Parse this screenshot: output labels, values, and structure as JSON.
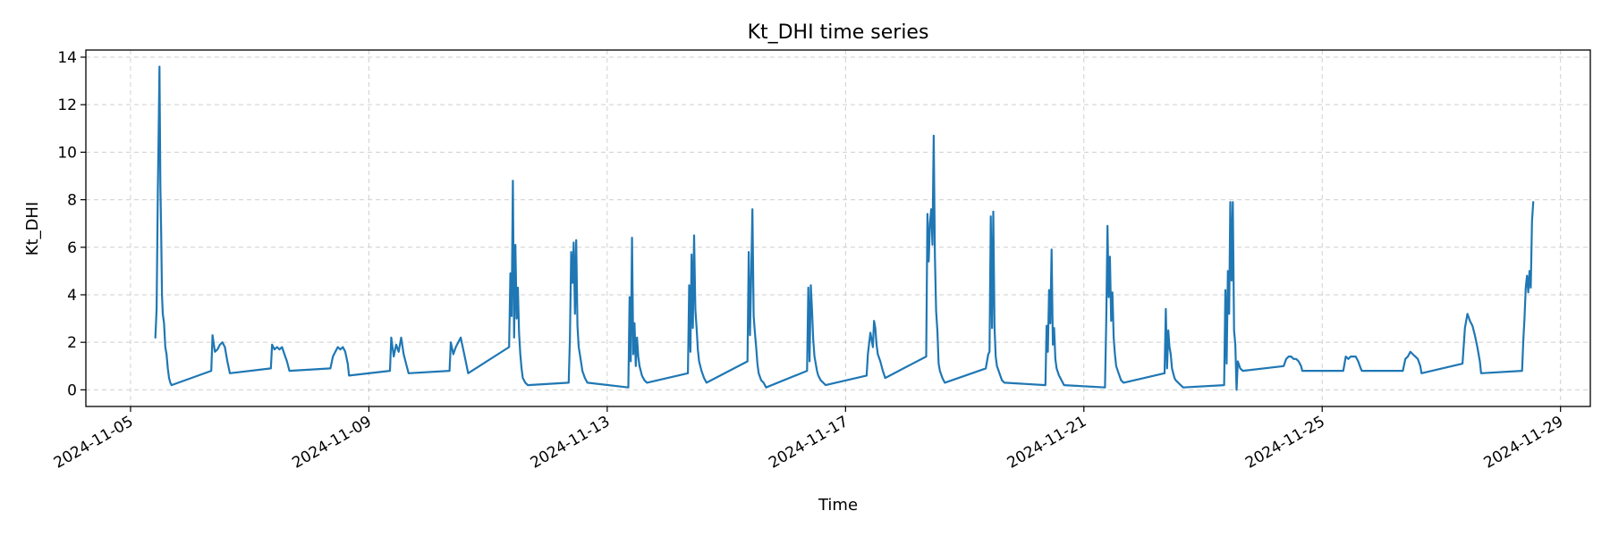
{
  "chart_data": {
    "type": "line",
    "title": "Kt_DHI time series",
    "xlabel": "Time",
    "ylabel": "Kt_DHI",
    "xlim": [
      "2024-11-04T06:00",
      "2024-11-29T12:00"
    ],
    "ylim": [
      -0.7,
      14.3
    ],
    "x_ticks": [
      "2024-11-05",
      "2024-11-09",
      "2024-11-13",
      "2024-11-17",
      "2024-11-21",
      "2024-11-25",
      "2024-11-29"
    ],
    "y_ticks": [
      0,
      2,
      4,
      6,
      8,
      10,
      12,
      14
    ],
    "grid": true,
    "color": "#1f77b4",
    "series": [
      {
        "x": [
          "2024-11-05T10:00",
          "2024-11-05T10:30",
          "2024-11-05T11:00",
          "2024-11-05T11:20",
          "2024-11-05T11:40",
          "2024-11-05T12:00",
          "2024-11-05T12:20",
          "2024-11-05T12:40",
          "2024-11-05T13:00",
          "2024-11-05T13:30",
          "2024-11-05T14:00",
          "2024-11-05T14:30",
          "2024-11-05T15:00",
          "2024-11-05T15:30",
          "2024-11-05T16:00",
          "2024-11-05T16:30",
          "2024-11-06T08:30",
          "2024-11-06T09:00",
          "2024-11-06T10:00",
          "2024-11-06T11:00",
          "2024-11-06T12:00",
          "2024-11-06T13:00",
          "2024-11-06T14:00",
          "2024-11-06T15:00",
          "2024-11-06T16:00",
          "2024-11-07T08:30",
          "2024-11-07T09:00",
          "2024-11-07T10:00",
          "2024-11-07T11:00",
          "2024-11-07T12:00",
          "2024-11-07T13:00",
          "2024-11-07T14:00",
          "2024-11-07T15:00",
          "2024-11-07T16:00",
          "2024-11-08T08:30",
          "2024-11-08T09:30",
          "2024-11-08T10:30",
          "2024-11-08T11:30",
          "2024-11-08T12:30",
          "2024-11-08T13:30",
          "2024-11-08T14:30",
          "2024-11-08T15:30",
          "2024-11-08T16:00",
          "2024-11-09T08:30",
          "2024-11-09T09:00",
          "2024-11-09T10:00",
          "2024-11-09T11:00",
          "2024-11-09T12:00",
          "2024-11-09T13:00",
          "2024-11-09T14:00",
          "2024-11-09T15:00",
          "2024-11-09T16:00",
          "2024-11-10T08:30",
          "2024-11-10T09:00",
          "2024-11-10T10:00",
          "2024-11-10T11:00",
          "2024-11-10T12:00",
          "2024-11-10T13:00",
          "2024-11-10T14:00",
          "2024-11-10T15:00",
          "2024-11-10T16:00",
          "2024-11-11T08:30",
          "2024-11-11T09:00",
          "2024-11-11T09:30",
          "2024-11-11T10:00",
          "2024-11-11T10:30",
          "2024-11-11T11:00",
          "2024-11-11T11:30",
          "2024-11-11T12:00",
          "2024-11-11T12:30",
          "2024-11-11T13:00",
          "2024-11-11T13:30",
          "2024-11-11T14:00",
          "2024-11-11T15:00",
          "2024-11-11T16:00",
          "2024-11-12T08:30",
          "2024-11-12T09:00",
          "2024-11-12T09:30",
          "2024-11-12T10:00",
          "2024-11-12T10:30",
          "2024-11-12T11:00",
          "2024-11-12T11:30",
          "2024-11-12T12:00",
          "2024-11-12T12:30",
          "2024-11-12T13:00",
          "2024-11-12T14:00",
          "2024-11-12T15:00",
          "2024-11-12T16:00",
          "2024-11-13T08:30",
          "2024-11-13T09:00",
          "2024-11-13T09:30",
          "2024-11-13T10:00",
          "2024-11-13T10:30",
          "2024-11-13T11:00",
          "2024-11-13T11:30",
          "2024-11-13T12:00",
          "2024-11-13T12:30",
          "2024-11-13T13:00",
          "2024-11-13T14:00",
          "2024-11-13T15:00",
          "2024-11-13T16:00",
          "2024-11-14T08:30",
          "2024-11-14T09:00",
          "2024-11-14T09:30",
          "2024-11-14T10:00",
          "2024-11-14T10:30",
          "2024-11-14T11:00",
          "2024-11-14T11:30",
          "2024-11-14T12:00",
          "2024-11-14T12:30",
          "2024-11-14T13:00",
          "2024-11-14T14:00",
          "2024-11-14T15:00",
          "2024-11-14T16:00",
          "2024-11-15T08:30",
          "2024-11-15T09:00",
          "2024-11-15T09:30",
          "2024-11-15T10:00",
          "2024-11-15T10:30",
          "2024-11-15T11:00",
          "2024-11-15T11:30",
          "2024-11-15T12:00",
          "2024-11-15T12:30",
          "2024-11-15T13:00",
          "2024-11-15T14:00",
          "2024-11-15T15:00",
          "2024-11-15T16:00",
          "2024-11-16T08:30",
          "2024-11-16T09:00",
          "2024-11-16T09:30",
          "2024-11-16T10:00",
          "2024-11-16T10:30",
          "2024-11-16T11:00",
          "2024-11-16T11:30",
          "2024-11-16T12:00",
          "2024-11-16T12:30",
          "2024-11-16T13:00",
          "2024-11-16T14:00",
          "2024-11-16T15:00",
          "2024-11-16T16:00",
          "2024-11-17T08:30",
          "2024-11-17T09:00",
          "2024-11-17T10:00",
          "2024-11-17T11:00",
          "2024-11-17T11:30",
          "2024-11-17T12:00",
          "2024-11-17T12:30",
          "2024-11-17T13:00",
          "2024-11-17T14:00",
          "2024-11-17T15:00",
          "2024-11-17T16:00",
          "2024-11-18T08:30",
          "2024-11-18T09:00",
          "2024-11-18T09:30",
          "2024-11-18T10:00",
          "2024-11-18T10:30",
          "2024-11-18T11:00",
          "2024-11-18T11:30",
          "2024-11-18T12:00",
          "2024-11-18T12:30",
          "2024-11-18T13:00",
          "2024-11-18T13:30",
          "2024-11-18T14:00",
          "2024-11-18T15:00",
          "2024-11-18T16:00",
          "2024-11-19T08:30",
          "2024-11-19T09:00",
          "2024-11-19T09:30",
          "2024-11-19T10:00",
          "2024-11-19T10:30",
          "2024-11-19T11:00",
          "2024-11-19T11:30",
          "2024-11-19T12:00",
          "2024-11-19T12:30",
          "2024-11-19T13:00",
          "2024-11-19T14:00",
          "2024-11-19T15:00",
          "2024-11-19T16:00",
          "2024-11-20T08:30",
          "2024-11-20T09:00",
          "2024-11-20T09:30",
          "2024-11-20T10:00",
          "2024-11-20T10:30",
          "2024-11-20T11:00",
          "2024-11-20T11:30",
          "2024-11-20T12:00",
          "2024-11-20T12:30",
          "2024-11-20T13:00",
          "2024-11-20T14:00",
          "2024-11-20T15:00",
          "2024-11-20T16:00",
          "2024-11-21T08:30",
          "2024-11-21T09:00",
          "2024-11-21T09:30",
          "2024-11-21T10:00",
          "2024-11-21T10:30",
          "2024-11-21T11:00",
          "2024-11-21T11:30",
          "2024-11-21T12:00",
          "2024-11-21T12:30",
          "2024-11-21T13:00",
          "2024-11-21T14:00",
          "2024-11-21T15:00",
          "2024-11-21T16:00",
          "2024-11-22T08:30",
          "2024-11-22T09:00",
          "2024-11-22T09:30",
          "2024-11-22T10:00",
          "2024-11-22T10:30",
          "2024-11-22T11:00",
          "2024-11-22T11:30",
          "2024-11-22T12:00",
          "2024-11-22T12:30",
          "2024-11-22T13:00",
          "2024-11-22T14:00",
          "2024-11-22T15:00",
          "2024-11-22T16:00",
          "2024-11-23T08:30",
          "2024-11-23T09:00",
          "2024-11-23T09:30",
          "2024-11-23T10:00",
          "2024-11-23T10:30",
          "2024-11-23T11:00",
          "2024-11-23T11:30",
          "2024-11-23T12:00",
          "2024-11-23T12:30",
          "2024-11-23T13:00",
          "2024-11-23T13:30",
          "2024-11-23T14:00",
          "2024-11-23T15:00",
          "2024-11-23T16:00",
          "2024-11-24T08:30",
          "2024-11-24T09:30",
          "2024-11-24T10:30",
          "2024-11-24T11:30",
          "2024-11-24T12:30",
          "2024-11-24T13:30",
          "2024-11-24T14:30",
          "2024-11-24T15:30",
          "2024-11-24T16:00",
          "2024-11-25T08:30",
          "2024-11-25T09:30",
          "2024-11-25T10:30",
          "2024-11-25T11:30",
          "2024-11-25T12:30",
          "2024-11-25T13:30",
          "2024-11-25T14:30",
          "2024-11-25T15:30",
          "2024-11-25T16:00",
          "2024-11-26T08:30",
          "2024-11-26T09:30",
          "2024-11-26T10:30",
          "2024-11-26T11:30",
          "2024-11-26T12:30",
          "2024-11-26T13:30",
          "2024-11-26T14:30",
          "2024-11-26T15:30",
          "2024-11-26T16:00",
          "2024-11-27T08:30",
          "2024-11-27T09:30",
          "2024-11-27T10:30",
          "2024-11-27T11:30",
          "2024-11-27T12:30",
          "2024-11-27T13:30",
          "2024-11-27T14:30",
          "2024-11-27T15:30",
          "2024-11-27T16:00",
          "2024-11-28T08:30",
          "2024-11-28T09:00",
          "2024-11-28T09:30",
          "2024-11-28T10:00",
          "2024-11-28T10:30",
          "2024-11-28T11:00",
          "2024-11-28T11:30",
          "2024-11-28T12:00",
          "2024-11-28T12:30",
          "2024-11-28T13:00"
        ],
        "y": [
          2.2,
          3.4,
          8.5,
          10.9,
          13.6,
          8.6,
          6.6,
          4.0,
          3.2,
          2.8,
          1.8,
          1.5,
          0.9,
          0.5,
          0.3,
          0.2,
          0.8,
          2.3,
          1.6,
          1.7,
          1.9,
          2.0,
          1.8,
          1.2,
          0.7,
          0.9,
          1.9,
          1.7,
          1.8,
          1.7,
          1.8,
          1.5,
          1.2,
          0.8,
          0.9,
          1.4,
          1.6,
          1.8,
          1.7,
          1.8,
          1.6,
          1.1,
          0.6,
          0.8,
          2.2,
          1.4,
          1.9,
          1.6,
          2.2,
          1.5,
          1.1,
          0.7,
          0.8,
          2.0,
          1.5,
          1.8,
          2.0,
          2.2,
          1.7,
          1.2,
          0.7,
          1.8,
          4.9,
          3.1,
          8.8,
          2.2,
          6.1,
          3.0,
          4.3,
          2.4,
          1.5,
          0.9,
          0.5,
          0.3,
          0.2,
          0.3,
          2.2,
          5.8,
          4.5,
          6.2,
          3.2,
          6.3,
          2.7,
          1.8,
          1.5,
          0.8,
          0.5,
          0.3,
          0.1,
          3.9,
          1.2,
          6.4,
          1.5,
          2.8,
          1.0,
          2.2,
          1.4,
          1.0,
          0.6,
          0.4,
          0.3,
          0.7,
          4.4,
          1.6,
          5.7,
          2.6,
          6.5,
          3.4,
          2.6,
          1.7,
          1.2,
          0.8,
          0.5,
          0.3,
          1.2,
          5.8,
          2.3,
          4.9,
          7.6,
          3.1,
          2.4,
          1.8,
          1.1,
          0.7,
          0.4,
          0.3,
          0.1,
          0.8,
          4.3,
          1.2,
          4.4,
          3.3,
          2.1,
          1.4,
          1.1,
          0.8,
          0.6,
          0.4,
          0.3,
          0.2,
          0.6,
          1.5,
          2.4,
          1.8,
          2.9,
          2.6,
          1.9,
          1.5,
          1.2,
          0.8,
          0.5,
          1.4,
          7.4,
          5.4,
          7.0,
          7.6,
          6.1,
          10.7,
          5.7,
          3.3,
          2.5,
          1.1,
          0.8,
          0.5,
          0.3,
          0.9,
          1.2,
          1.5,
          1.6,
          7.3,
          2.6,
          7.5,
          2.6,
          1.4,
          1.0,
          0.7,
          0.4,
          0.3,
          0.2,
          2.7,
          1.6,
          4.2,
          2.8,
          5.9,
          1.9,
          2.6,
          1.3,
          0.9,
          0.6,
          0.4,
          0.2,
          0.1,
          2.9,
          6.9,
          3.9,
          5.6,
          2.9,
          4.1,
          2.2,
          1.5,
          1.0,
          0.7,
          0.4,
          0.3,
          0.7,
          3.4,
          0.9,
          2.5,
          1.8,
          1.5,
          0.9,
          0.7,
          0.5,
          0.4,
          0.3,
          0.2,
          0.1,
          0.2,
          4.2,
          1.1,
          5.0,
          3.2,
          7.9,
          4.6,
          7.9,
          2.5,
          1.9,
          0.0,
          1.2,
          0.9,
          0.8,
          1.0,
          1.3,
          1.4,
          1.4,
          1.3,
          1.3,
          1.2,
          1.0,
          0.8,
          0.8,
          1.4,
          1.3,
          1.4,
          1.4,
          1.4,
          1.2,
          0.9,
          0.8,
          0.8,
          1.3,
          1.4,
          1.6,
          1.5,
          1.4,
          1.3,
          1.0,
          0.7,
          1.1,
          2.6,
          3.2,
          2.9,
          2.7,
          2.3,
          1.8,
          1.2,
          0.7,
          0.8,
          2.1,
          3.0,
          4.3,
          4.8,
          4.1,
          5.0,
          4.3,
          7.1,
          7.9
        ]
      }
    ]
  }
}
